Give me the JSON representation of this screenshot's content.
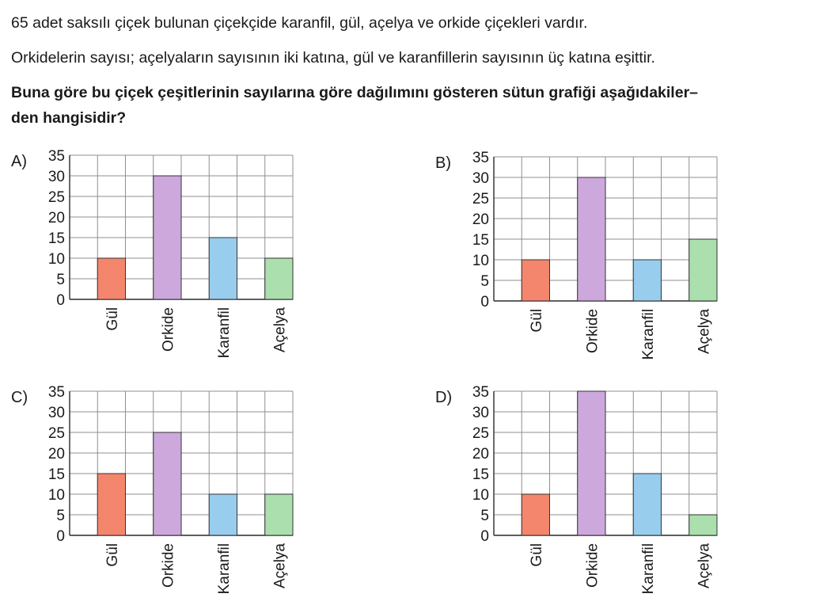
{
  "question": {
    "line1": "65 adet saksılı çiçek bulunan çiçekçide karanfil, gül, açelya ve orkide çiçekleri vardır.",
    "line2": "Orkidelerin sayısı; açelyaların sayısının iki katına, gül ve karanfillerin sayısının üç katına eşittir.",
    "line3": "Buna göre bu çiçek çeşitlerinin sayılarına göre dağılımını gösteren sütun grafiği aşağıdakiler–",
    "line4": "den hangisidir?"
  },
  "colors": {
    "Gül": "#f4866d",
    "Orkide": "#cda8dc",
    "Karanfil": "#98cdee",
    "Açelya": "#abdfae",
    "grid": "#8f8f8f",
    "axis": "#2a2a2a"
  },
  "chart_data": [
    {
      "type": "bar",
      "option": "A)",
      "categories": [
        "Gül",
        "Orkide",
        "Karanfil",
        "Açelya"
      ],
      "values": [
        10,
        30,
        15,
        10
      ],
      "yticks": [
        0,
        5,
        10,
        15,
        20,
        25,
        30,
        35
      ],
      "ylim": [
        0,
        35
      ],
      "grid": true
    },
    {
      "type": "bar",
      "option": "B)",
      "categories": [
        "Gül",
        "Orkide",
        "Karanfil",
        "Açelya"
      ],
      "values": [
        10,
        30,
        10,
        15
      ],
      "yticks": [
        0,
        5,
        10,
        15,
        20,
        25,
        30,
        35
      ],
      "ylim": [
        0,
        35
      ],
      "grid": true
    },
    {
      "type": "bar",
      "option": "C)",
      "categories": [
        "Gül",
        "Orkide",
        "Karanfil",
        "Açelya"
      ],
      "values": [
        15,
        25,
        10,
        10
      ],
      "yticks": [
        0,
        5,
        10,
        15,
        20,
        25,
        30,
        35
      ],
      "ylim": [
        0,
        35
      ],
      "grid": true
    },
    {
      "type": "bar",
      "option": "D)",
      "categories": [
        "Gül",
        "Orkide",
        "Karanfil",
        "Açelya"
      ],
      "values": [
        10,
        35,
        15,
        5
      ],
      "yticks": [
        0,
        5,
        10,
        15,
        20,
        25,
        30,
        35
      ],
      "ylim": [
        0,
        35
      ],
      "grid": true
    }
  ]
}
